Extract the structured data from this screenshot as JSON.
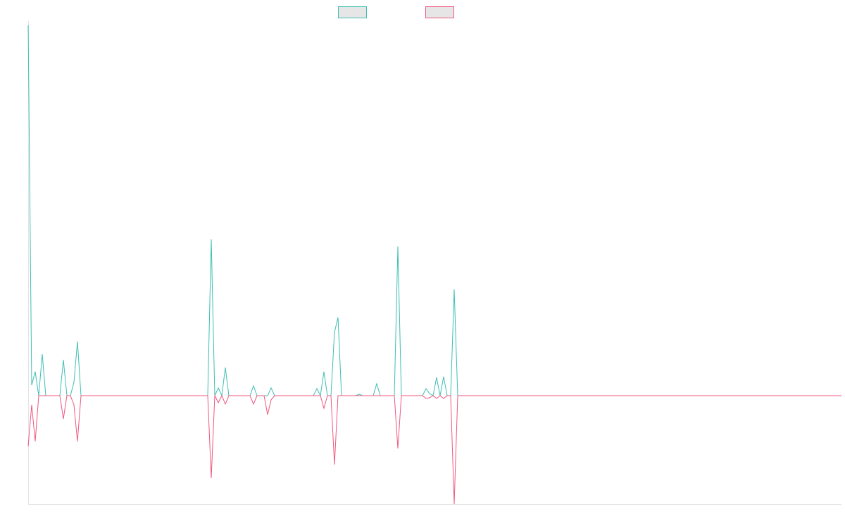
{
  "chart_data": {
    "type": "line",
    "series": [
      {
        "color": "#3dbfb3",
        "values": [
          526,
          15,
          34,
          0,
          59,
          0,
          0,
          0,
          0,
          0,
          51,
          0,
          0,
          19,
          77,
          0,
          0,
          0,
          0,
          0,
          0,
          0,
          0,
          0,
          0,
          0,
          0,
          0,
          0,
          0,
          0,
          0,
          0,
          0,
          0,
          0,
          0,
          0,
          0,
          0,
          0,
          0,
          0,
          0,
          0,
          0,
          0,
          0,
          0,
          0,
          0,
          0,
          222,
          0,
          11,
          0,
          40,
          0,
          0,
          0,
          0,
          0,
          0,
          0,
          14,
          0,
          0,
          0,
          0,
          11,
          0,
          0,
          0,
          0,
          0,
          0,
          0,
          0,
          0,
          0,
          0,
          0,
          10,
          0,
          34,
          0,
          0,
          90,
          111,
          0,
          0,
          0,
          0,
          0,
          2,
          0,
          0,
          0,
          0,
          17,
          0,
          0,
          0,
          0,
          0,
          212,
          0,
          0,
          0,
          0,
          0,
          0,
          0,
          10,
          3,
          0,
          26,
          0,
          27,
          0,
          0,
          151,
          0,
          0,
          0,
          0,
          0,
          0,
          0,
          0,
          0,
          0,
          0,
          0,
          0,
          0,
          0,
          0,
          0,
          0,
          0,
          0,
          0,
          0,
          0,
          0,
          0,
          0,
          0,
          0,
          0,
          0,
          0,
          0,
          0,
          0,
          0,
          0,
          0,
          0,
          0,
          0,
          0,
          0,
          0,
          0,
          0,
          0,
          0,
          0,
          0,
          0,
          0,
          0,
          0,
          0,
          0,
          0,
          0,
          0,
          0,
          0,
          0,
          0,
          0,
          0,
          0,
          0,
          0,
          0,
          0,
          0,
          0,
          0,
          0,
          0,
          0,
          0,
          0,
          0,
          0,
          0,
          0,
          0,
          0,
          0,
          0,
          0,
          0,
          0,
          0,
          0,
          0,
          0,
          0,
          0,
          0,
          0,
          0,
          0,
          0,
          0,
          0,
          0,
          0,
          0,
          0,
          0,
          0,
          0,
          0,
          0
        ]
      },
      {
        "color": "#f0577f",
        "values": [
          -72,
          -13,
          -65,
          0,
          0,
          0,
          0,
          0,
          0,
          0,
          -33,
          0,
          0,
          -13,
          -65,
          0,
          0,
          0,
          0,
          0,
          0,
          0,
          0,
          0,
          0,
          0,
          0,
          0,
          0,
          0,
          0,
          0,
          0,
          0,
          0,
          0,
          0,
          0,
          0,
          0,
          0,
          0,
          0,
          0,
          0,
          0,
          0,
          0,
          0,
          0,
          0,
          0,
          -117,
          0,
          -10,
          0,
          -12,
          0,
          0,
          0,
          0,
          0,
          0,
          0,
          -12,
          0,
          0,
          0,
          -27,
          -6,
          0,
          0,
          0,
          0,
          0,
          0,
          0,
          0,
          0,
          0,
          0,
          0,
          0,
          0,
          -18,
          0,
          0,
          -98,
          0,
          0,
          0,
          0,
          0,
          0,
          0,
          0,
          0,
          0,
          0,
          0,
          0,
          0,
          0,
          0,
          0,
          -75,
          0,
          0,
          0,
          0,
          0,
          0,
          0,
          -4,
          -3,
          0,
          -4,
          0,
          -4,
          0,
          0,
          -154,
          0,
          0,
          0,
          0,
          0,
          0,
          0,
          0,
          0,
          0,
          0,
          0,
          0,
          0,
          0,
          0,
          0,
          0,
          0,
          0,
          0,
          0,
          0,
          0,
          0,
          0,
          0,
          0,
          0,
          0,
          0,
          0,
          0,
          0,
          0,
          0,
          0,
          0,
          0,
          0,
          0,
          0,
          0,
          0,
          0,
          0,
          0,
          0,
          0,
          0,
          0,
          0,
          0,
          0,
          0,
          0,
          0,
          0,
          0,
          0,
          0,
          0,
          0,
          0,
          0,
          0,
          0,
          0,
          0,
          0,
          0,
          0,
          0,
          0,
          0,
          0,
          0,
          0,
          0,
          0,
          0,
          0,
          0,
          0,
          0,
          0,
          0,
          0,
          0,
          0,
          0,
          0,
          0,
          0,
          0,
          0,
          0,
          0,
          0,
          0,
          0,
          0,
          0,
          0,
          0,
          0,
          0,
          0,
          0,
          0
        ]
      }
    ],
    "ylim": [
      -154,
      532
    ]
  }
}
